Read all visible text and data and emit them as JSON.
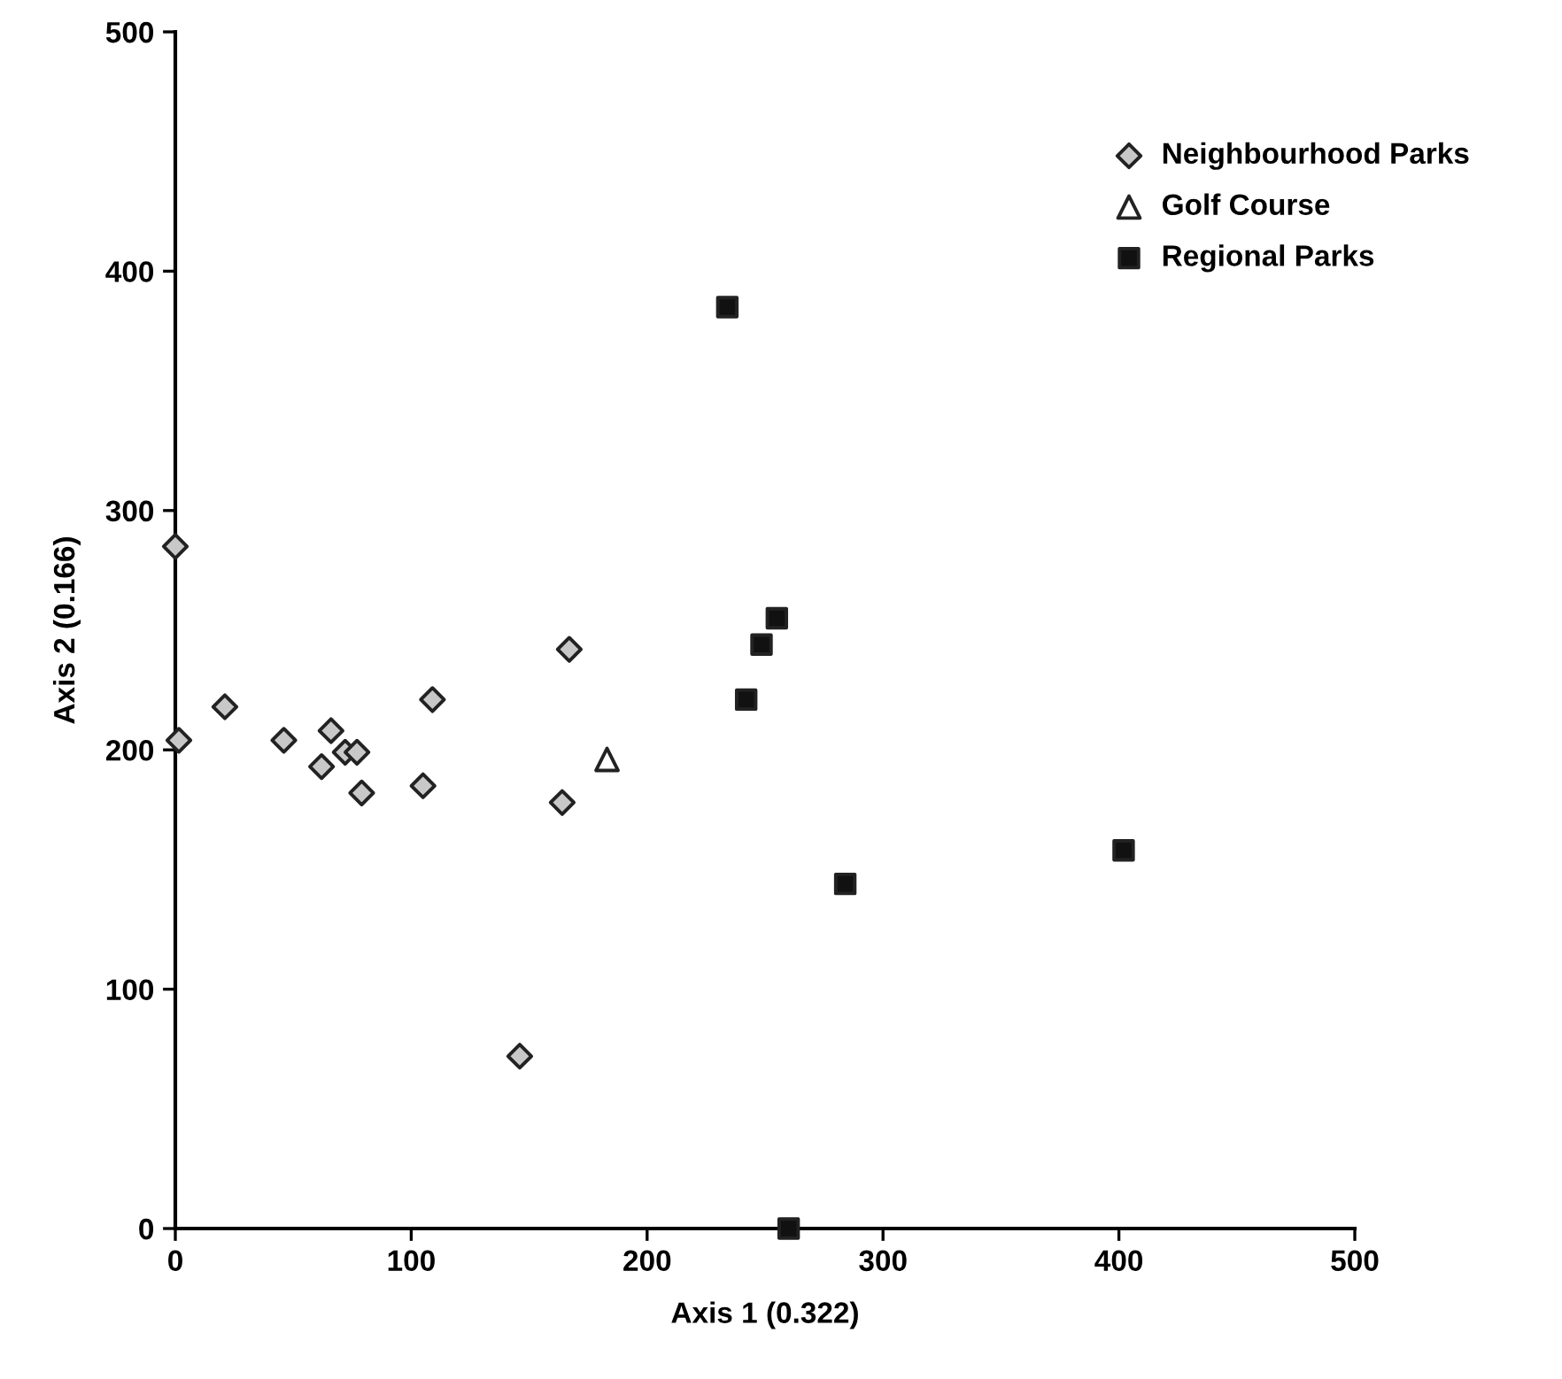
{
  "chart_data": {
    "type": "scatter",
    "xlabel": "Axis 1 (0.322)",
    "ylabel": "Axis 2 (0.166)",
    "xlim": [
      0,
      500
    ],
    "ylim": [
      0,
      500
    ],
    "xticks": [
      0,
      100,
      200,
      300,
      400,
      500
    ],
    "yticks": [
      0,
      100,
      200,
      300,
      400,
      500
    ],
    "grid": false,
    "legend": "top right",
    "series": [
      {
        "name": "Neighbourhood Parks",
        "color": "#c8c8c8",
        "marker": "diamond",
        "x": [
          0,
          1.5,
          21,
          46,
          66,
          62,
          72,
          77,
          79,
          109,
          105,
          167,
          164,
          146
        ],
        "values": [
          285,
          204,
          218,
          204,
          208,
          193,
          199,
          199,
          182,
          221,
          185,
          242,
          178,
          72
        ]
      },
      {
        "name": "Golf Course",
        "color": "#ffffff",
        "marker": "triangle",
        "x": [
          183
        ],
        "values": [
          196
        ]
      },
      {
        "name": "Regional Parks",
        "color": "#111111",
        "marker": "square",
        "x": [
          234,
          255,
          248.5,
          242,
          284,
          402,
          260
        ],
        "values": [
          385,
          255,
          244,
          221,
          144,
          158,
          0
        ]
      }
    ]
  }
}
